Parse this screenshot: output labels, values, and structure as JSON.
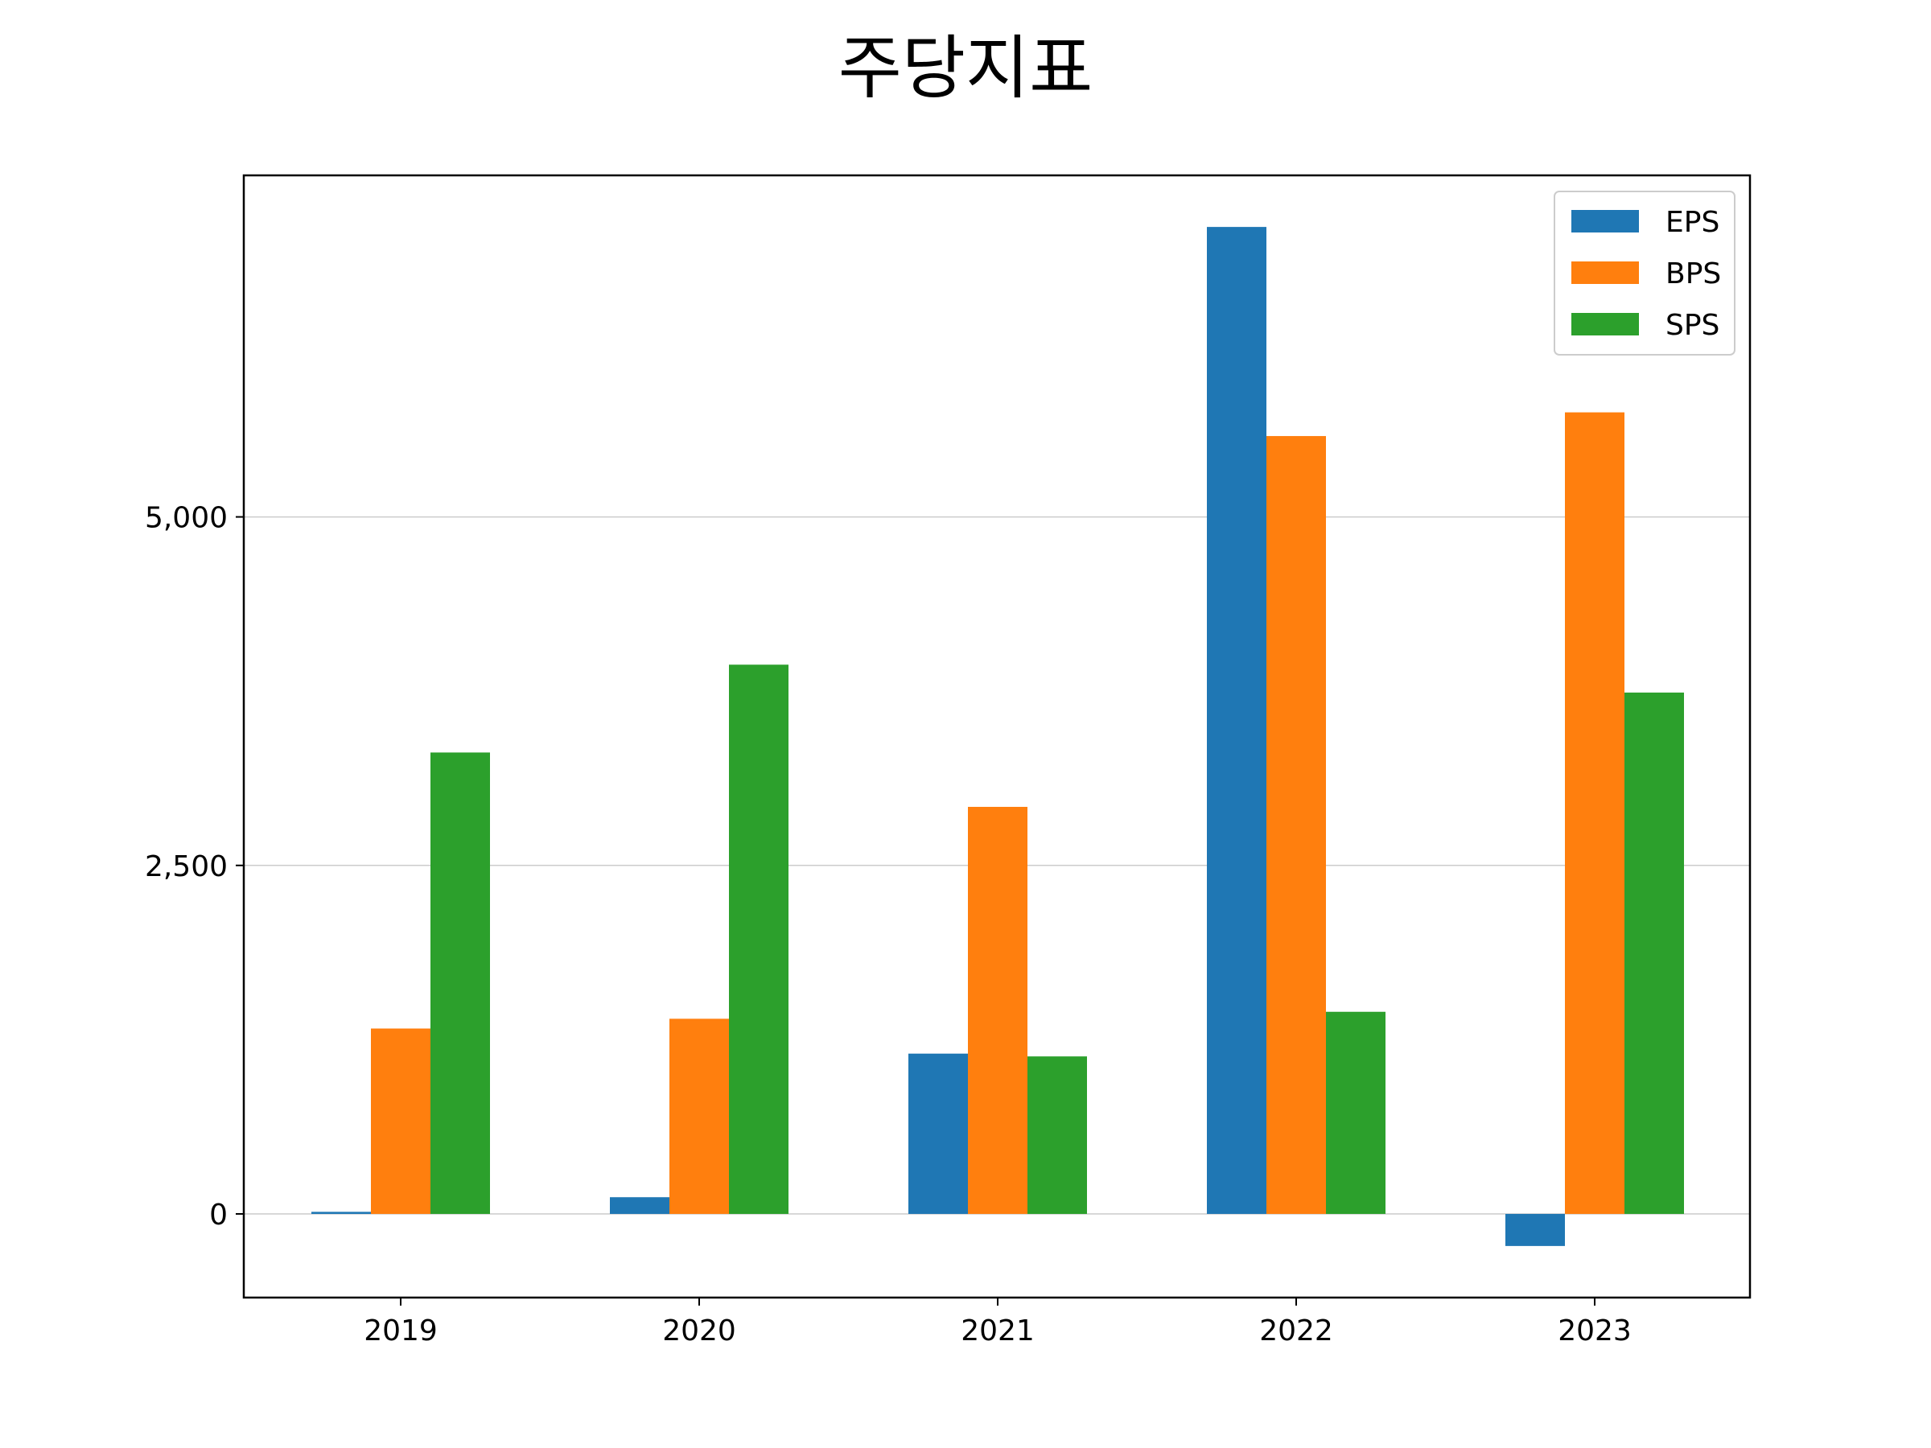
{
  "chart_data": {
    "type": "bar",
    "title": "주당지표",
    "xlabel": "",
    "ylabel": "",
    "categories": [
      "2019",
      "2020",
      "2021",
      "2022",
      "2023"
    ],
    "series": [
      {
        "name": "EPS",
        "color": "#1f77b4",
        "values": [
          15,
          120,
          1150,
          7080,
          -230
        ]
      },
      {
        "name": "BPS",
        "color": "#ff7f0e",
        "values": [
          1330,
          1400,
          2920,
          5580,
          5750
        ]
      },
      {
        "name": "SPS",
        "color": "#2ca02c",
        "values": [
          3310,
          3940,
          1130,
          1450,
          3740
        ]
      }
    ],
    "ylim": [
      -600,
      7450
    ],
    "yticks": [
      0,
      2500,
      5000
    ],
    "ytick_labels": [
      "0",
      "2,500",
      "5,000"
    ],
    "grid": "horizontal",
    "legend_position": "top-right"
  }
}
